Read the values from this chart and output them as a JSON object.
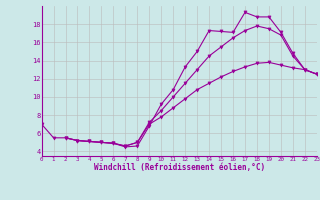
{
  "xlabel": "Windchill (Refroidissement éolien,°C)",
  "background_color": "#cce8e8",
  "line_color": "#990099",
  "grid_color": "#bbbbbb",
  "xlim": [
    0,
    23
  ],
  "ylim": [
    3.5,
    20
  ],
  "yticks": [
    4,
    6,
    8,
    10,
    12,
    14,
    16,
    18
  ],
  "xticks": [
    0,
    1,
    2,
    3,
    4,
    5,
    6,
    7,
    8,
    9,
    10,
    11,
    12,
    13,
    14,
    15,
    16,
    17,
    18,
    19,
    20,
    21,
    22,
    23
  ],
  "line1_x": [
    0,
    1,
    2,
    3,
    4,
    5,
    6,
    7,
    8,
    9,
    10,
    11,
    12,
    13,
    14,
    15,
    16,
    17,
    18,
    19,
    20,
    21,
    22,
    23
  ],
  "line1_y": [
    7.0,
    5.5,
    5.5,
    5.2,
    5.1,
    5.0,
    4.9,
    4.5,
    4.6,
    6.8,
    9.2,
    10.8,
    13.3,
    15.0,
    17.3,
    17.2,
    17.1,
    19.3,
    18.8,
    18.8,
    17.1,
    14.8,
    13.0,
    12.5
  ],
  "line2_x": [
    2,
    3,
    4,
    5,
    6,
    7,
    8,
    9,
    10,
    11,
    12,
    13,
    14,
    15,
    16,
    17,
    18,
    19,
    20,
    21,
    22,
    23
  ],
  "line2_y": [
    5.5,
    5.2,
    5.1,
    5.0,
    4.9,
    4.6,
    5.0,
    7.2,
    8.5,
    10.0,
    11.5,
    13.0,
    14.5,
    15.5,
    16.5,
    17.3,
    17.8,
    17.5,
    16.8,
    14.5,
    13.0,
    12.5
  ],
  "line3_x": [
    2,
    3,
    4,
    5,
    6,
    7,
    8,
    9,
    10,
    11,
    12,
    13,
    14,
    15,
    16,
    17,
    18,
    19,
    20,
    21,
    22,
    23
  ],
  "line3_y": [
    5.5,
    5.2,
    5.1,
    5.0,
    4.9,
    4.6,
    5.0,
    7.0,
    7.8,
    8.8,
    9.8,
    10.8,
    11.5,
    12.2,
    12.8,
    13.3,
    13.7,
    13.8,
    13.5,
    13.2,
    13.0,
    12.5
  ]
}
